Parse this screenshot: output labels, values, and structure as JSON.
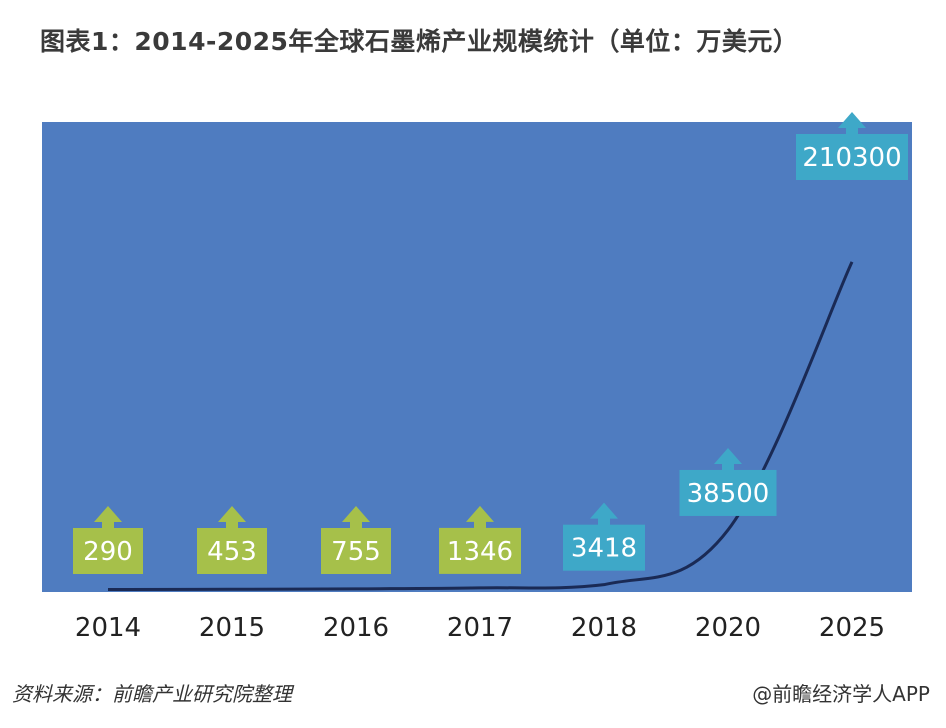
{
  "chart_data": {
    "type": "line",
    "title": "图表1：2014-2025年全球石墨烯产业规模统计（单位：万美元）",
    "xlabel": "",
    "ylabel": "",
    "categories": [
      "2014",
      "2015",
      "2016",
      "2017",
      "2018",
      "2020",
      "2025"
    ],
    "values": [
      290,
      453,
      755,
      1346,
      3418,
      38500,
      210300
    ],
    "labels": [
      "290",
      "453",
      "755",
      "1346",
      "3418",
      "38500",
      "210300"
    ],
    "label_kind": [
      "actual",
      "actual",
      "actual",
      "actual",
      "forecast",
      "forecast",
      "forecast"
    ],
    "ylim": [
      0,
      250000
    ],
    "grid": false,
    "colors": {
      "plot_bg": "#4f7cc0",
      "line": "#1a2a55",
      "actual_label_bg": "#a6c04a",
      "forecast_label_bg": "#3ea8c8",
      "label_text": "#ffffff"
    }
  },
  "footer": {
    "source": "资料来源：前瞻产业研究院整理",
    "credit": "@前瞻经济学人APP"
  }
}
